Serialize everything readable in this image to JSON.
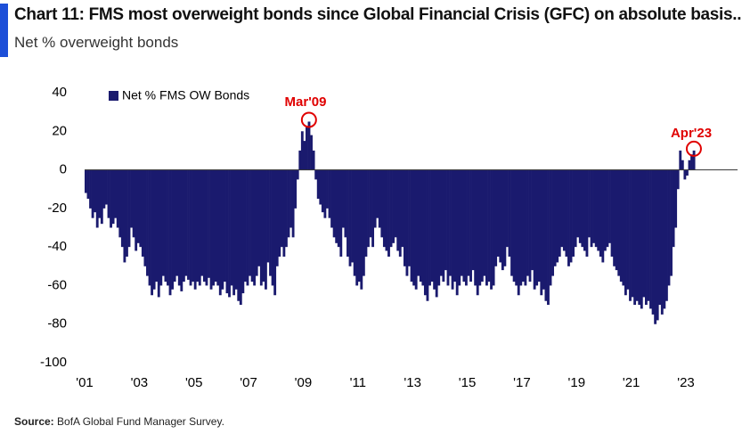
{
  "chart_data": {
    "type": "bar",
    "title": "Chart 11: FMS most overweight bonds since Global Financial Crisis (GFC) on absolute basis...",
    "subtitle": "Net % overweight bonds",
    "source_label": "Source:",
    "source": "BofA Global Fund Manager Survey.",
    "legend": "Net % FMS OW Bonds",
    "color": "#1a1a6e",
    "annotations": [
      "Mar'09",
      "Apr'23"
    ],
    "annotation_color": "#e00000",
    "categories": [
      "'01",
      null,
      null,
      null,
      null,
      null,
      null,
      null,
      null,
      null,
      null,
      null,
      null,
      null,
      null,
      null,
      null,
      null,
      null,
      null,
      null,
      null,
      null,
      null,
      "'03",
      null,
      null,
      null,
      null,
      null,
      null,
      null,
      null,
      null,
      null,
      null,
      null,
      null,
      null,
      null,
      null,
      null,
      null,
      null,
      null,
      null,
      null,
      null,
      "'05",
      null,
      null,
      null,
      null,
      null,
      null,
      null,
      null,
      null,
      null,
      null,
      null,
      null,
      null,
      null,
      null,
      null,
      null,
      null,
      null,
      null,
      null,
      null,
      "'07",
      null,
      null,
      null,
      null,
      null,
      null,
      null,
      null,
      null,
      null,
      null,
      null,
      null,
      null,
      null,
      null,
      null,
      null,
      null,
      null,
      null,
      null,
      null,
      "'09",
      null,
      null,
      null,
      null,
      null,
      null,
      null,
      null,
      null,
      null,
      null,
      null,
      null,
      null,
      null,
      null,
      null,
      null,
      null,
      null,
      null,
      null,
      null,
      "'11",
      null,
      null,
      null,
      null,
      null,
      null,
      null,
      null,
      null,
      null,
      null,
      null,
      null,
      null,
      null,
      null,
      null,
      null,
      null,
      null,
      null,
      null,
      null,
      "'13",
      null,
      null,
      null,
      null,
      null,
      null,
      null,
      null,
      null,
      null,
      null,
      null,
      null,
      null,
      null,
      null,
      null,
      null,
      null,
      null,
      null,
      null,
      null,
      "'15",
      null,
      null,
      null,
      null,
      null,
      null,
      null,
      null,
      null,
      null,
      null,
      null,
      null,
      null,
      null,
      null,
      null,
      null,
      null,
      null,
      null,
      null,
      null,
      "'17",
      null,
      null,
      null,
      null,
      null,
      null,
      null,
      null,
      null,
      null,
      null,
      null,
      null,
      null,
      null,
      null,
      null,
      null,
      null,
      null,
      null,
      null,
      null,
      "'19",
      null,
      null,
      null,
      null,
      null,
      null,
      null,
      null,
      null,
      null,
      null,
      null,
      null,
      null,
      null,
      null,
      null,
      null,
      null,
      null,
      null,
      null,
      null,
      "'21",
      null,
      null,
      null,
      null,
      null,
      null,
      null,
      null,
      null,
      null,
      null,
      null,
      null,
      null,
      null,
      null,
      null,
      null,
      null,
      null,
      null,
      null,
      null,
      "'23",
      null,
      null,
      null
    ],
    "values": [
      -12,
      -15,
      -20,
      -25,
      -22,
      -30,
      -25,
      -28,
      -20,
      -18,
      -25,
      -30,
      -28,
      -25,
      -30,
      -35,
      -40,
      -48,
      -45,
      -40,
      -30,
      -35,
      -42,
      -38,
      -40,
      -45,
      -50,
      -55,
      -60,
      -65,
      -62,
      -58,
      -66,
      -60,
      -55,
      -58,
      -60,
      -65,
      -62,
      -58,
      -55,
      -60,
      -63,
      -58,
      -55,
      -57,
      -60,
      -58,
      -62,
      -58,
      -60,
      -55,
      -58,
      -60,
      -56,
      -62,
      -60,
      -58,
      -60,
      -65,
      -62,
      -58,
      -64,
      -66,
      -60,
      -65,
      -62,
      -68,
      -70,
      -64,
      -58,
      -60,
      -55,
      -58,
      -60,
      -55,
      -50,
      -60,
      -58,
      -62,
      -48,
      -55,
      -60,
      -65,
      -50,
      -45,
      -40,
      -45,
      -40,
      -35,
      -30,
      -35,
      -20,
      -5,
      10,
      20,
      15,
      22,
      25,
      18,
      10,
      -5,
      -15,
      -18,
      -22,
      -25,
      -20,
      -25,
      -30,
      -35,
      -38,
      -40,
      -45,
      -30,
      -35,
      -45,
      -50,
      -48,
      -55,
      -60,
      -58,
      -62,
      -55,
      -45,
      -40,
      -35,
      -40,
      -30,
      -25,
      -30,
      -35,
      -40,
      -42,
      -45,
      -40,
      -38,
      -35,
      -42,
      -45,
      -40,
      -50,
      -55,
      -50,
      -58,
      -60,
      -62,
      -55,
      -58,
      -60,
      -65,
      -68,
      -60,
      -58,
      -62,
      -66,
      -60,
      -55,
      -58,
      -52,
      -60,
      -55,
      -62,
      -58,
      -65,
      -60,
      -55,
      -58,
      -60,
      -55,
      -58,
      -52,
      -60,
      -65,
      -60,
      -58,
      -55,
      -60,
      -58,
      -62,
      -60,
      -50,
      -45,
      -48,
      -52,
      -50,
      -40,
      -45,
      -55,
      -58,
      -60,
      -65,
      -60,
      -58,
      -60,
      -55,
      -58,
      -52,
      -62,
      -60,
      -58,
      -65,
      -62,
      -68,
      -70,
      -60,
      -55,
      -50,
      -48,
      -45,
      -40,
      -42,
      -45,
      -50,
      -48,
      -45,
      -40,
      -35,
      -38,
      -40,
      -42,
      -45,
      -35,
      -40,
      -38,
      -40,
      -42,
      -45,
      -48,
      -42,
      -40,
      -38,
      -45,
      -50,
      -52,
      -55,
      -58,
      -60,
      -65,
      -62,
      -68,
      -66,
      -70,
      -68,
      -70,
      -72,
      -66,
      -70,
      -68,
      -72,
      -75,
      -80,
      -78,
      -70,
      -75,
      -72,
      -68,
      -60,
      -55,
      -40,
      -30,
      -10,
      10,
      5,
      -5,
      -3,
      5,
      8,
      10
    ],
    "ylim": [
      -100,
      40
    ],
    "yticks": [
      40,
      20,
      0,
      -20,
      -40,
      -60,
      -80,
      -100
    ]
  }
}
